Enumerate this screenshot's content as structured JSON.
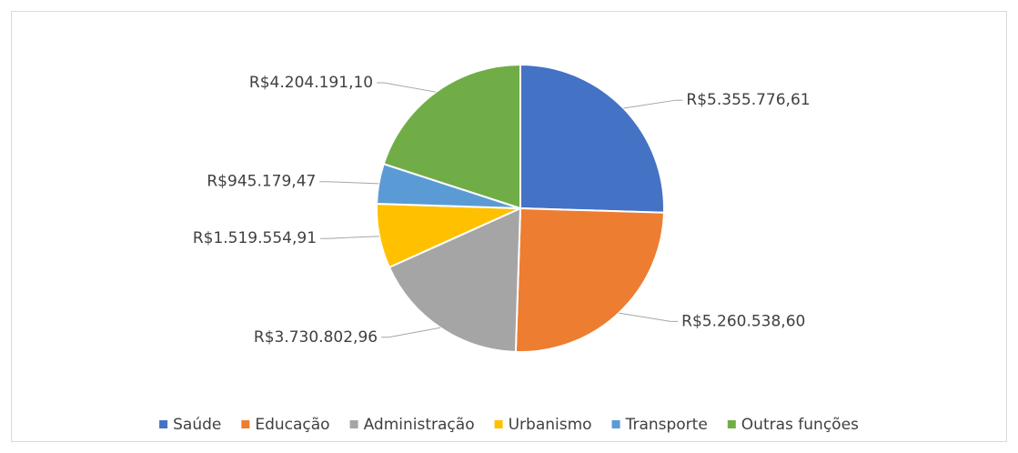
{
  "chart_data": {
    "type": "pie",
    "categories": [
      "Saúde",
      "Educação",
      "Administração",
      "Urbanismo",
      "Transporte",
      "Outras funções"
    ],
    "values": [
      5355776.61,
      5260538.6,
      3730802.96,
      1519554.91,
      945179.47,
      4204191.1
    ],
    "value_labels": [
      "R$5.355.776,61",
      "R$5.260.538,60",
      "R$3.730.802,96",
      "R$1.519.554,91",
      "R$945.179,47",
      "R$4.204.191,10"
    ],
    "colors": [
      "#4472c4",
      "#ed7d31",
      "#a5a5a5",
      "#ffc000",
      "#5b9bd5",
      "#70ad47"
    ],
    "legend": "bottom"
  }
}
